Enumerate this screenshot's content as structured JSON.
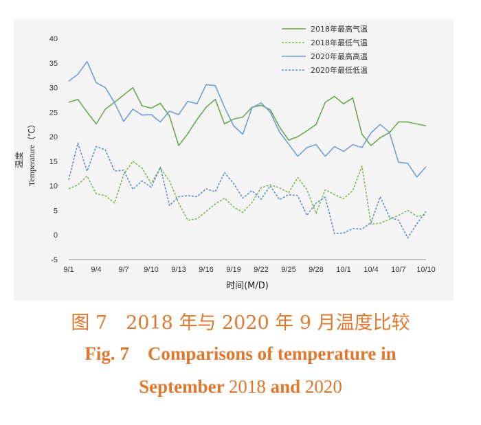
{
  "chart_data": {
    "type": "line",
    "ylabel_cn": "温度",
    "ylabel_en": "Temperature（℃）",
    "xlabel": "时间(M/D)",
    "ylim": [
      -5,
      40
    ],
    "yticks": [
      -5,
      0,
      5,
      10,
      15,
      20,
      25,
      30,
      35,
      40
    ],
    "x_count": 40,
    "xticks": [
      {
        "i": 0,
        "label": "9/1"
      },
      {
        "i": 3,
        "label": "9/4"
      },
      {
        "i": 6,
        "label": "9/7"
      },
      {
        "i": 9,
        "label": "9/10"
      },
      {
        "i": 12,
        "label": "9/13"
      },
      {
        "i": 15,
        "label": "9/16"
      },
      {
        "i": 18,
        "label": "9/19"
      },
      {
        "i": 21,
        "label": "9/22"
      },
      {
        "i": 24,
        "label": "9/25"
      },
      {
        "i": 27,
        "label": "9/28"
      },
      {
        "i": 30,
        "label": "10/1"
      },
      {
        "i": 33,
        "label": "10/4"
      },
      {
        "i": 36,
        "label": "10/7"
      },
      {
        "i": 39,
        "label": "10/10"
      }
    ],
    "grid": false,
    "legend_position": "top-right",
    "series": [
      {
        "name": "2018年最高气温",
        "color": "#6aa84f",
        "dashed": false,
        "values": [
          27,
          27.6,
          25,
          22.6,
          25.6,
          27,
          28.5,
          30,
          26.3,
          25.8,
          26.8,
          24.2,
          18.2,
          20.6,
          23.5,
          26,
          27.6,
          22.6,
          23.6,
          24,
          26,
          26.4,
          25.5,
          22,
          19.3,
          20,
          21.2,
          22.5,
          27,
          28.2,
          26.7,
          27.9,
          20.5,
          18.2,
          19.8,
          20.8,
          23,
          23,
          22.6,
          22.2
        ]
      },
      {
        "name": "2018年最低气温",
        "color": "#7fb850",
        "dashed": true,
        "values": [
          9.4,
          10.2,
          12,
          8.4,
          8,
          6.5,
          12.3,
          15,
          13.6,
          10.5,
          13.6,
          11,
          6.5,
          3,
          3.3,
          4.8,
          6.3,
          7.5,
          5.7,
          4.6,
          6.6,
          9.6,
          10.2,
          9.6,
          8.6,
          11.7,
          9.2,
          4.4,
          9.2,
          8.2,
          7.4,
          9,
          14,
          2.2,
          2.4,
          3.2,
          4,
          5,
          3.8,
          4.1
        ]
      },
      {
        "name": "2020年最高高温",
        "color": "#6f9fd8",
        "dashed": false,
        "values": [
          31.3,
          32.7,
          35.3,
          31,
          30,
          26.9,
          23.1,
          25.6,
          24.4,
          24.5,
          23,
          25.2,
          24.5,
          27.2,
          26.7,
          30.6,
          30.4,
          26,
          22.2,
          20.5,
          25.9,
          26.9,
          25,
          21,
          18.5,
          16,
          17.8,
          18.4,
          16,
          18,
          17,
          18.4,
          17.8,
          20.8,
          22.5,
          20.9,
          14.8,
          14.6,
          11.8,
          13.9
        ]
      },
      {
        "name": "2020年最低低温",
        "color": "#5b8fd0",
        "dashed": true,
        "values": [
          11.2,
          18.7,
          13,
          18,
          17.3,
          13,
          13.2,
          9.3,
          11,
          9.7,
          13.8,
          6,
          7.8,
          8,
          7.8,
          9.4,
          8.8,
          12.7,
          10.5,
          7.5,
          9,
          7.3,
          10,
          7.2,
          8.2,
          8,
          4,
          6.5,
          7.7,
          0.3,
          0.4,
          1.3,
          1.2,
          2.5,
          7.8,
          3.6,
          3,
          -0.6,
          2.3,
          4.8
        ]
      }
    ]
  },
  "caption": {
    "cn": "图 7　2018 年与 2020 年 9 月温度比较",
    "en_label": "Fig. 7",
    "en_line1": "Comparisons of temperature in",
    "en_line2_a": "September",
    "en_line2_b": "2018",
    "en_line2_c": "and",
    "en_line2_d": "2020"
  }
}
